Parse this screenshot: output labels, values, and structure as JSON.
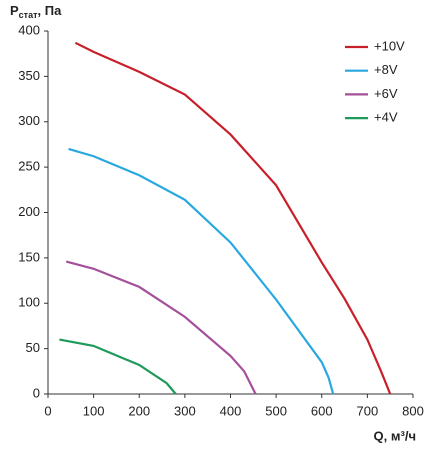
{
  "chart_data": {
    "type": "line",
    "ylabel": {
      "main": "P",
      "sub": "стат",
      "rest": ", Па"
    },
    "xlabel": "Q, м³/ч",
    "xlim": [
      0,
      800
    ],
    "xticks": [
      0,
      100,
      200,
      300,
      400,
      500,
      600,
      700,
      800
    ],
    "ylim": [
      0,
      400
    ],
    "yticks": [
      0,
      50,
      100,
      150,
      200,
      250,
      300,
      350,
      400
    ],
    "legend": "upper-right",
    "series": [
      {
        "name": "+10V",
        "color": "#c8202a",
        "x": [
          60,
          100,
          200,
          300,
          400,
          500,
          600,
          650,
          700,
          730,
          750
        ],
        "values": [
          387,
          377,
          355,
          330,
          286,
          230,
          145,
          105,
          60,
          25,
          0
        ]
      },
      {
        "name": "+8V",
        "color": "#29a8e0",
        "x": [
          45,
          100,
          200,
          300,
          400,
          500,
          600,
          615,
          625
        ],
        "values": [
          270,
          262,
          241,
          214,
          167,
          104,
          35,
          18,
          0
        ]
      },
      {
        "name": "+6V",
        "color": "#a5509a",
        "x": [
          40,
          100,
          200,
          300,
          400,
          430,
          450,
          455
        ],
        "values": [
          146,
          138,
          118,
          85,
          42,
          25,
          5,
          0
        ]
      },
      {
        "name": "+4V",
        "color": "#1e9a5a",
        "x": [
          25,
          100,
          200,
          260,
          280
        ],
        "values": [
          60,
          53,
          32,
          12,
          0
        ]
      }
    ]
  }
}
